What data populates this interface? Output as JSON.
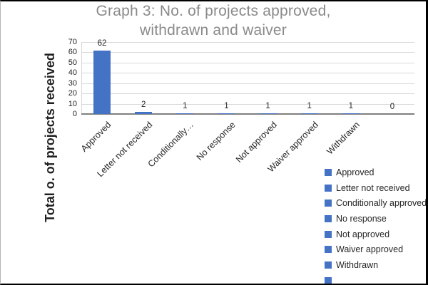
{
  "chart_data": {
    "type": "bar",
    "title_line1": "Graph 3: No. of projects approved,",
    "title_line2": "withdrawn and waiver",
    "title": "Graph 3: No. of projects approved, withdrawn and waiver",
    "ylabel": "Total o. of projects received",
    "xlabel": "",
    "categories": [
      "Approved",
      "Letter not received",
      "Conditionally approved",
      "No response",
      "Not approved",
      "Waiver approved",
      "Withdrawn",
      ""
    ],
    "x_tick_labels": [
      "Approved",
      "Letter not received",
      "Conditionally…",
      "No response",
      "Not approved",
      "Waiver approved",
      "Withdrawn",
      ""
    ],
    "values": [
      62,
      2,
      1,
      1,
      1,
      1,
      1,
      0
    ],
    "data_labels": [
      "62",
      "2",
      "1",
      "1",
      "1",
      "1",
      "1",
      "0"
    ],
    "y_ticks": [
      0,
      10,
      20,
      30,
      40,
      50,
      60,
      70
    ],
    "ylim": [
      0,
      70
    ],
    "grid": true,
    "legend_position": "right",
    "legend_entries": [
      "Approved",
      "Letter not received",
      "Conditionally approved",
      "No response",
      "Not approved",
      "Waiver approved",
      "Withdrawn",
      ""
    ],
    "bar_color": "#4472c4",
    "title_color": "#8a8a8a",
    "gridline_color": "#d9d9d9"
  }
}
